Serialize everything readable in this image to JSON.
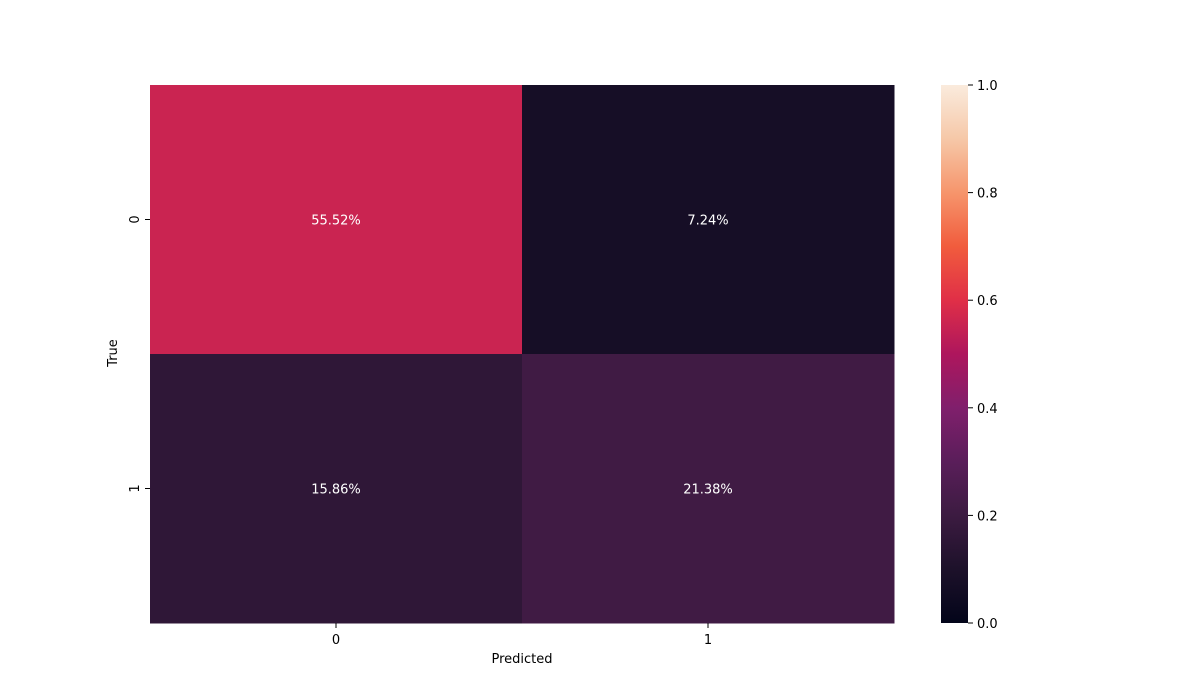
{
  "chart_data": {
    "type": "heatmap",
    "xlabel": "Predicted",
    "ylabel": "True",
    "x_categories": [
      "0",
      "1"
    ],
    "y_categories": [
      "0",
      "1"
    ],
    "values": [
      [
        0.5552,
        0.0724
      ],
      [
        0.1586,
        0.2138
      ]
    ],
    "annotations": [
      [
        "55.52%",
        "7.24%"
      ],
      [
        "15.86%",
        "21.38%"
      ]
    ],
    "colorbar": {
      "range": [
        0.0,
        1.0
      ],
      "ticks": [
        "0.0",
        "0.2",
        "0.4",
        "0.6",
        "0.8",
        "1.0"
      ],
      "colormap": "rocket"
    },
    "grid": false,
    "legend": "colorbar-right"
  }
}
